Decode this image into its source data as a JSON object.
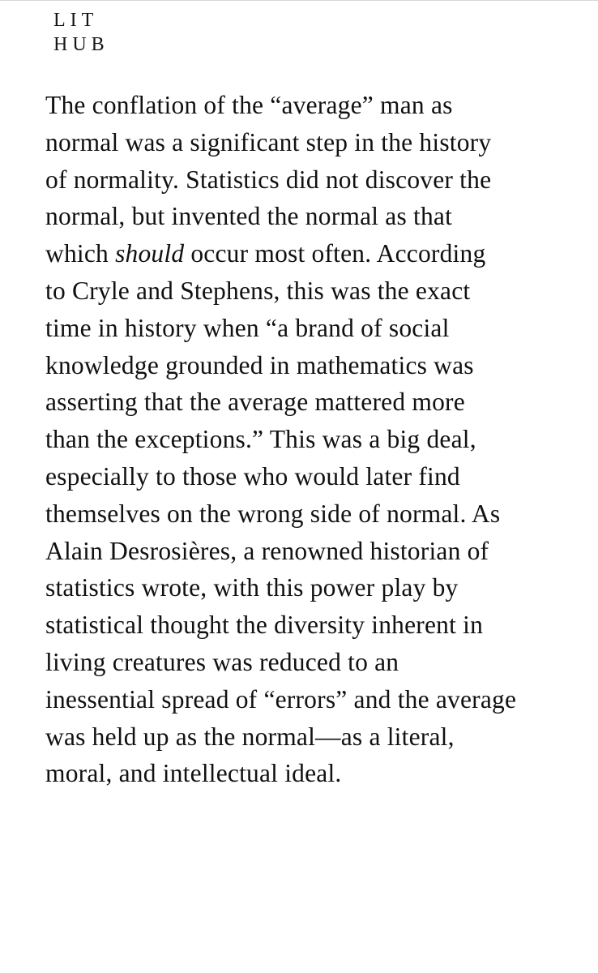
{
  "logo": {
    "line1": "LIT",
    "line2": "HUB"
  },
  "article": {
    "lines": [
      "The conflation of the “average” man as",
      "normal was a significant step in the history",
      "of normality. Statistics did not discover the",
      "normal, but invented the normal as that",
      "which",
      "should",
      "occur most often. According",
      "to Cryle and Stephens, this was the exact",
      "time in history when “a brand of social",
      "knowledge grounded in mathematics was",
      "asserting that the average mattered more",
      "than the exceptions.” This was a big deal,",
      "especially to those who would later find",
      "themselves on the wrong side of normal. As",
      "Alain Desrosières, a renowned historian of",
      "statistics wrote, with this power play by",
      "statistical thought the diversity inherent in",
      "living creatures was reduced to an",
      "inessential spread of “errors” and the average",
      "was held up as the normal—as a literal,",
      "moral, and intellectual ideal."
    ]
  }
}
